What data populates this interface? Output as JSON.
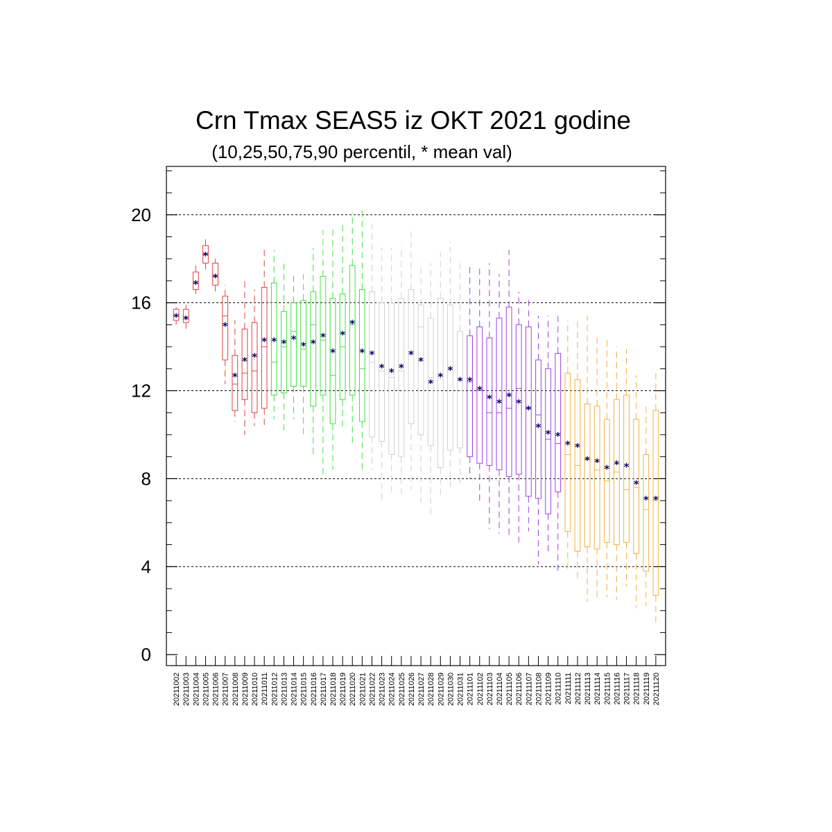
{
  "chart_data": {
    "type": "boxplot",
    "title": "Crn Tmax SEAS5 iz OKT 2021 godine",
    "subtitle": "(10,25,50,75,90 percentil, * mean val)",
    "xlabel": "",
    "ylabel": "",
    "ylim": [
      -0.5,
      22.2
    ],
    "yticks": [
      "0",
      "4",
      "8",
      "12",
      "16",
      "20"
    ],
    "grid": "horizontal dashed at 4, 8, 12, 16, 20",
    "colors": {
      "red": "#e04040",
      "green": "#40e040",
      "grey": "#d0d0d0",
      "purple": "#a040e0",
      "orange": "#f0b040",
      "mean": "#000066",
      "grid": "#000000"
    },
    "categories": [
      "20211002",
      "20211003",
      "20211004",
      "20211005",
      "20211006",
      "20211007",
      "20211008",
      "20211009",
      "20211010",
      "20211011",
      "20211012",
      "20211013",
      "20211014",
      "20211015",
      "20211016",
      "20211017",
      "20211018",
      "20211019",
      "20211020",
      "20211021",
      "20211022",
      "20211023",
      "20211024",
      "20211025",
      "20211026",
      "20211027",
      "20211028",
      "20211029",
      "20211030",
      "20211031",
      "20211101",
      "20211102",
      "20211103",
      "20211104",
      "20211105",
      "20211106",
      "20211107",
      "20211108",
      "20211109",
      "20211110",
      "20211111",
      "20211112",
      "20211113",
      "20211114",
      "20211115",
      "20211116",
      "20211117",
      "20211118",
      "20211119",
      "20211120"
    ],
    "series": [
      {
        "p10": 15.0,
        "p25": 15.2,
        "p50": 15.4,
        "p75": 15.7,
        "p90": 15.8,
        "mean": 15.4,
        "color": "red"
      },
      {
        "p10": 14.8,
        "p25": 15.1,
        "p50": 15.35,
        "p75": 15.7,
        "p90": 15.9,
        "mean": 15.3,
        "color": "red"
      },
      {
        "p10": 16.4,
        "p25": 16.6,
        "p50": 16.9,
        "p75": 17.4,
        "p90": 17.7,
        "mean": 16.9,
        "color": "red"
      },
      {
        "p10": 17.5,
        "p25": 17.8,
        "p50": 18.2,
        "p75": 18.6,
        "p90": 19.0,
        "mean": 18.2,
        "color": "red"
      },
      {
        "p10": 16.4,
        "p25": 16.8,
        "p50": 17.2,
        "p75": 17.8,
        "p90": 18.0,
        "mean": 17.2,
        "color": "red"
      },
      {
        "p10": 12.3,
        "p25": 13.4,
        "p50": 15.4,
        "p75": 16.3,
        "p90": 16.8,
        "mean": 15.0,
        "color": "red"
      },
      {
        "p10": 10.6,
        "p25": 11.1,
        "p50": 12.3,
        "p75": 13.6,
        "p90": 15.2,
        "mean": 12.7,
        "color": "red"
      },
      {
        "p10": 10.0,
        "p25": 11.6,
        "p50": 12.8,
        "p75": 14.8,
        "p90": 17.1,
        "mean": 13.4,
        "color": "red"
      },
      {
        "p10": 10.4,
        "p25": 11.0,
        "p50": 12.9,
        "p75": 15.1,
        "p90": 16.6,
        "mean": 13.6,
        "color": "red"
      },
      {
        "p10": 10.3,
        "p25": 11.2,
        "p50": 14.0,
        "p75": 16.7,
        "p90": 18.5,
        "mean": 14.3,
        "color": "red"
      },
      {
        "p10": 10.7,
        "p25": 11.8,
        "p50": 13.3,
        "p75": 16.9,
        "p90": 18.4,
        "mean": 14.3,
        "color": "green"
      },
      {
        "p10": 10.1,
        "p25": 11.9,
        "p50": 14.0,
        "p75": 15.6,
        "p90": 17.9,
        "mean": 14.2,
        "color": "green"
      },
      {
        "p10": 10.7,
        "p25": 12.2,
        "p50": 14.7,
        "p75": 16.0,
        "p90": 17.3,
        "mean": 14.4,
        "color": "green"
      },
      {
        "p10": 10.0,
        "p25": 12.2,
        "p50": 13.9,
        "p75": 16.1,
        "p90": 17.3,
        "mean": 14.1,
        "color": "green"
      },
      {
        "p10": 9.1,
        "p25": 11.3,
        "p50": 15.0,
        "p75": 16.5,
        "p90": 18.5,
        "mean": 14.2,
        "color": "green"
      },
      {
        "p10": 8.0,
        "p25": 11.8,
        "p50": 14.3,
        "p75": 17.2,
        "p90": 19.3,
        "mean": 14.5,
        "color": "green"
      },
      {
        "p10": 8.4,
        "p25": 10.5,
        "p50": 12.7,
        "p75": 16.2,
        "p90": 19.5,
        "mean": 13.8,
        "color": "green"
      },
      {
        "p10": 10.2,
        "p25": 11.6,
        "p50": 14.0,
        "p75": 16.4,
        "p90": 19.6,
        "mean": 14.6,
        "color": "green"
      },
      {
        "p10": 9.5,
        "p25": 11.8,
        "p50": 15.0,
        "p75": 17.7,
        "p90": 20.1,
        "mean": 15.1,
        "color": "green"
      },
      {
        "p10": 8.2,
        "p25": 10.6,
        "p50": 13.0,
        "p75": 16.6,
        "p90": 20.2,
        "mean": 13.8,
        "color": "green"
      },
      {
        "p10": 8.4,
        "p25": 9.9,
        "p50": 13.3,
        "p75": 16.5,
        "p90": 19.6,
        "mean": 13.7,
        "color": "grey"
      },
      {
        "p10": 7.0,
        "p25": 9.7,
        "p50": 12.9,
        "p75": 16.0,
        "p90": 18.5,
        "mean": 13.1,
        "color": "grey"
      },
      {
        "p10": 7.3,
        "p25": 9.1,
        "p50": 12.6,
        "p75": 16.0,
        "p90": 18.5,
        "mean": 12.9,
        "color": "grey"
      },
      {
        "p10": 7.3,
        "p25": 9.0,
        "p50": 12.9,
        "p75": 16.2,
        "p90": 18.6,
        "mean": 13.1,
        "color": "grey"
      },
      {
        "p10": 7.5,
        "p25": 10.5,
        "p50": 13.8,
        "p75": 16.6,
        "p90": 19.3,
        "mean": 13.7,
        "color": "grey"
      },
      {
        "p10": 6.7,
        "p25": 10.0,
        "p50": 14.9,
        "p75": 15.9,
        "p90": 17.8,
        "mean": 13.4,
        "color": "grey"
      },
      {
        "p10": 6.3,
        "p25": 9.5,
        "p50": 12.6,
        "p75": 15.3,
        "p90": 17.8,
        "mean": 12.4,
        "color": "grey"
      },
      {
        "p10": 7.2,
        "p25": 8.5,
        "p50": 12.7,
        "p75": 16.2,
        "p90": 18.3,
        "mean": 12.7,
        "color": "grey"
      },
      {
        "p10": 7.6,
        "p25": 9.3,
        "p50": 13.0,
        "p75": 15.9,
        "p90": 18.8,
        "mean": 13.0,
        "color": "grey"
      },
      {
        "p10": 7.8,
        "p25": 9.4,
        "p50": 12.5,
        "p75": 14.7,
        "p90": 17.8,
        "mean": 12.5,
        "color": "grey"
      },
      {
        "p10": 8.0,
        "p25": 9.0,
        "p50": 12.4,
        "p75": 14.5,
        "p90": 17.8,
        "mean": 12.5,
        "color": "purple"
      },
      {
        "p10": 6.9,
        "p25": 8.7,
        "p50": 12.0,
        "p75": 14.9,
        "p90": 17.7,
        "mean": 12.1,
        "color": "purple"
      },
      {
        "p10": 5.7,
        "p25": 8.6,
        "p50": 11.0,
        "p75": 14.4,
        "p90": 17.8,
        "mean": 11.7,
        "color": "purple"
      },
      {
        "p10": 5.5,
        "p25": 8.4,
        "p50": 11.0,
        "p75": 15.3,
        "p90": 17.3,
        "mean": 11.5,
        "color": "purple"
      },
      {
        "p10": 5.3,
        "p25": 8.1,
        "p50": 11.2,
        "p75": 15.8,
        "p90": 18.4,
        "mean": 11.8,
        "color": "purple"
      },
      {
        "p10": 5.1,
        "p25": 8.2,
        "p50": 12.1,
        "p75": 15.0,
        "p90": 16.5,
        "mean": 11.5,
        "color": "purple"
      },
      {
        "p10": 5.6,
        "p25": 7.2,
        "p50": 11.2,
        "p75": 14.9,
        "p90": 16.2,
        "mean": 11.2,
        "color": "purple"
      },
      {
        "p10": 4.1,
        "p25": 7.1,
        "p50": 10.9,
        "p75": 13.4,
        "p90": 15.4,
        "mean": 10.4,
        "color": "purple"
      },
      {
        "p10": 4.5,
        "p25": 6.4,
        "p50": 9.8,
        "p75": 13.0,
        "p90": 15.4,
        "mean": 10.1,
        "color": "purple"
      },
      {
        "p10": 3.8,
        "p25": 7.4,
        "p50": 9.6,
        "p75": 13.7,
        "p90": 15.4,
        "mean": 10.0,
        "color": "purple"
      },
      {
        "p10": 3.9,
        "p25": 5.6,
        "p50": 9.1,
        "p75": 12.8,
        "p90": 15.2,
        "mean": 9.6,
        "color": "orange"
      },
      {
        "p10": 3.4,
        "p25": 4.7,
        "p50": 8.6,
        "p75": 12.5,
        "p90": 15.3,
        "mean": 9.5,
        "color": "orange"
      },
      {
        "p10": 2.4,
        "p25": 4.9,
        "p50": 8.9,
        "p75": 11.4,
        "p90": 15.4,
        "mean": 8.9,
        "color": "orange"
      },
      {
        "p10": 2.6,
        "p25": 4.8,
        "p50": 8.4,
        "p75": 11.3,
        "p90": 14.5,
        "mean": 8.8,
        "color": "orange"
      },
      {
        "p10": 2.6,
        "p25": 5.1,
        "p50": 7.9,
        "p75": 10.7,
        "p90": 14.4,
        "mean": 8.5,
        "color": "orange"
      },
      {
        "p10": 2.5,
        "p25": 5.0,
        "p50": 8.3,
        "p75": 11.6,
        "p90": 14.0,
        "mean": 8.7,
        "color": "orange"
      },
      {
        "p10": 3.1,
        "p25": 5.1,
        "p50": 7.5,
        "p75": 11.8,
        "p90": 13.9,
        "mean": 8.6,
        "color": "orange"
      },
      {
        "p10": 2.1,
        "p25": 4.6,
        "p50": 7.6,
        "p75": 10.7,
        "p90": 12.7,
        "mean": 7.8,
        "color": "orange"
      },
      {
        "p10": 2.2,
        "p25": 3.8,
        "p50": 6.6,
        "p75": 9.1,
        "p90": 11.3,
        "mean": 7.1,
        "color": "orange"
      },
      {
        "p10": 1.4,
        "p25": 2.7,
        "p50": 7.0,
        "p75": 11.1,
        "p90": 13.0,
        "mean": 7.1,
        "color": "orange"
      }
    ]
  }
}
